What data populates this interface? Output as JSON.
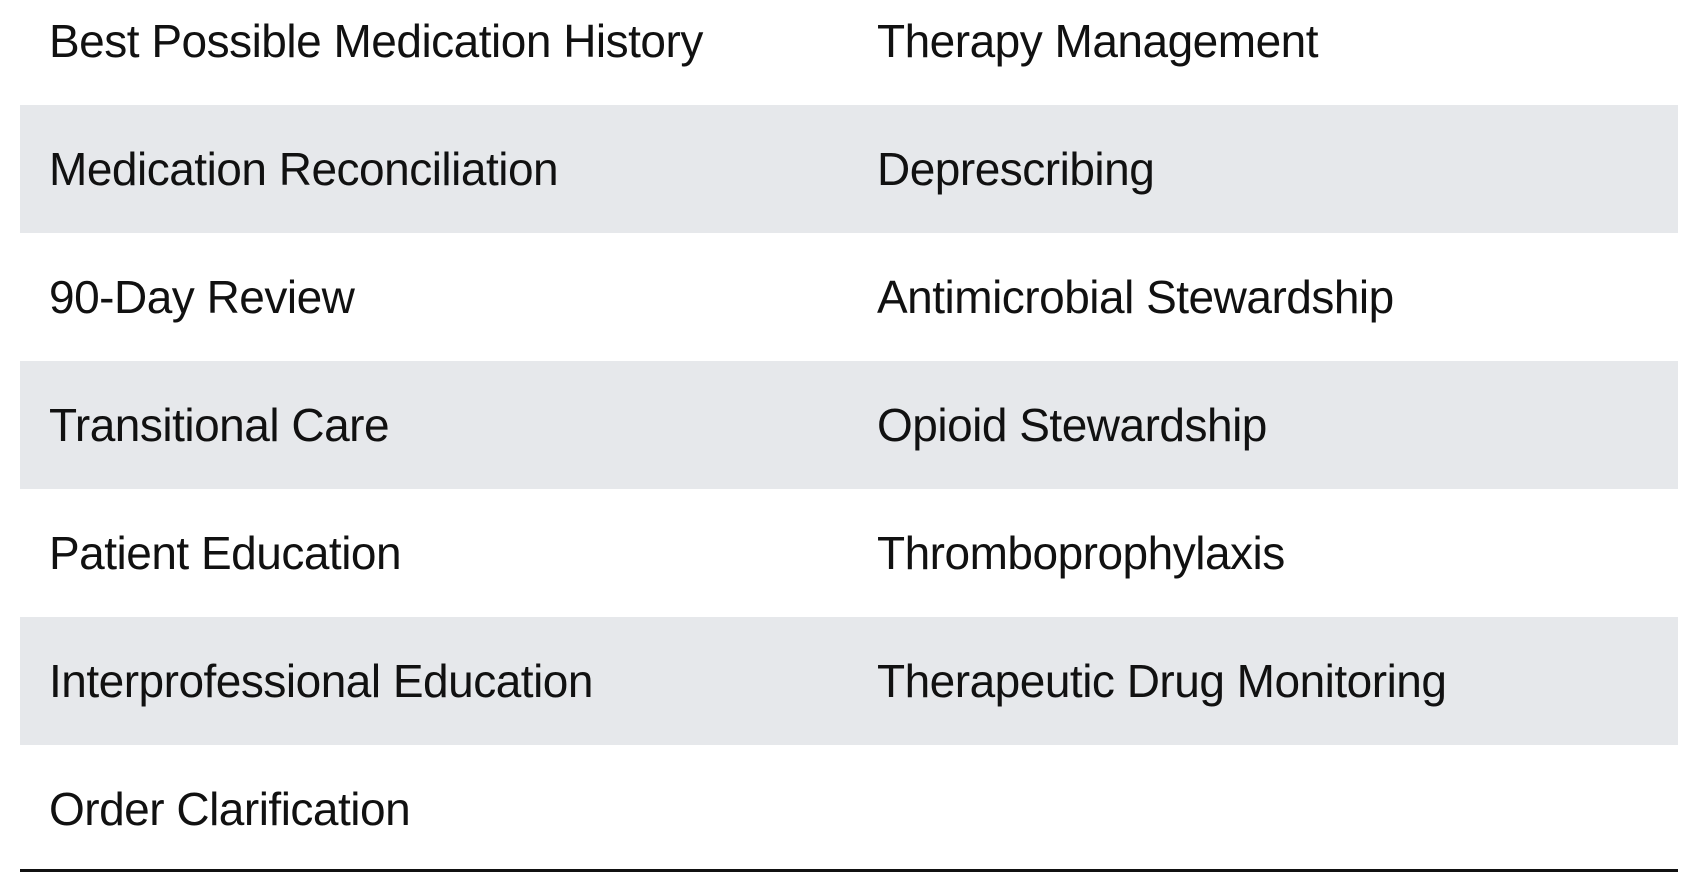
{
  "rows": [
    [
      "Best Possible Medication History",
      "Therapy Management"
    ],
    [
      "Medication Reconciliation",
      "Deprescribing"
    ],
    [
      "90-Day Review",
      "Antimicrobial Stewardship"
    ],
    [
      "Transitional Care",
      "Opioid Stewardship"
    ],
    [
      "Patient Education",
      "Thromboprophylaxis"
    ],
    [
      "Interprofessional Education",
      "Therapeutic Drug Monitoring"
    ],
    [
      "Order Clarification",
      ""
    ]
  ],
  "colors": {
    "shaded_row": "#e6e8eb",
    "text": "#111111"
  }
}
